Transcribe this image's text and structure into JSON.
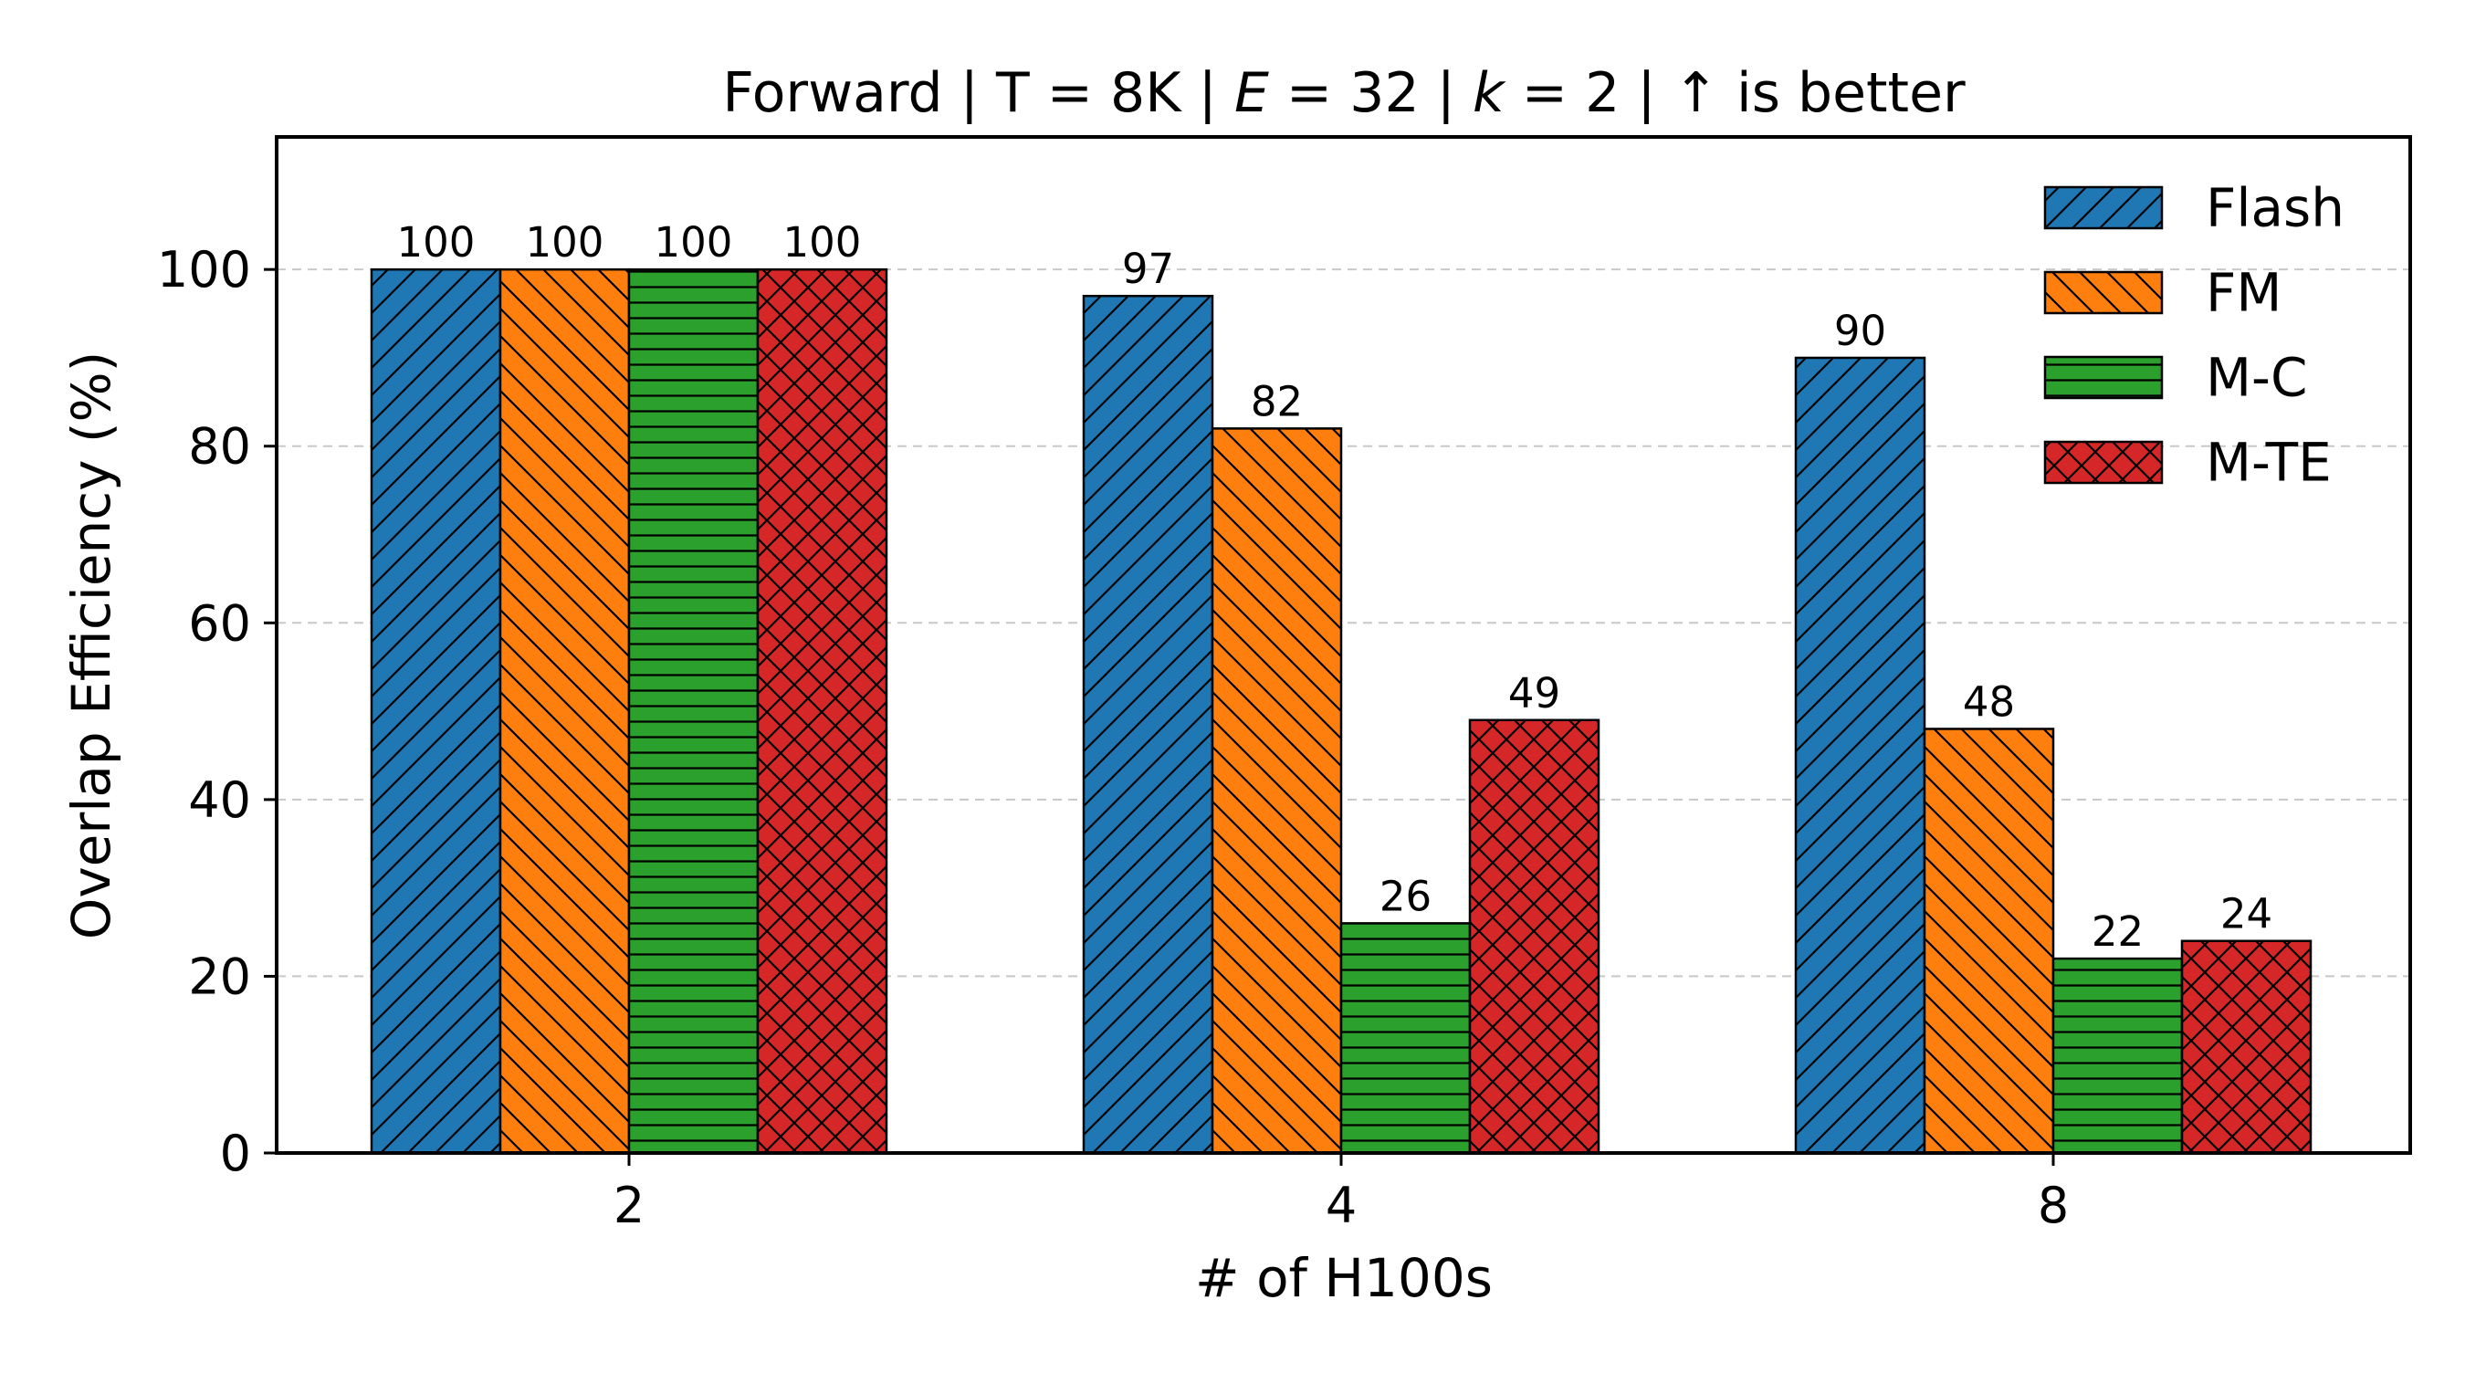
{
  "chart_data": {
    "type": "bar",
    "title": "Forward | T = 8K | E = 32 | k = 2 |  ↑  is better",
    "title_parts": {
      "prefix": "Forward | T = 8K | ",
      "e_symbol": "E",
      "e_value": " = 32 | ",
      "k_symbol": "k",
      "k_value": " = 2 |  ↑  is better"
    },
    "xlabel": "# of H100s",
    "ylabel": "Overlap Efficiency (%)",
    "categories": [
      "2",
      "4",
      "8"
    ],
    "ylim": [
      0,
      115
    ],
    "yticks": [
      0,
      20,
      40,
      60,
      80,
      100
    ],
    "grid": "y-dashed",
    "legend_position": "top-right",
    "series": [
      {
        "name": "Flash",
        "values": [
          100,
          97,
          90
        ],
        "color": "#1f77b4",
        "hatch": "forward-diagonal"
      },
      {
        "name": "FM",
        "values": [
          100,
          82,
          48
        ],
        "color": "#ff7f0e",
        "hatch": "back-diagonal"
      },
      {
        "name": "M-C",
        "values": [
          100,
          26,
          22
        ],
        "color": "#2ca02c",
        "hatch": "horizontal"
      },
      {
        "name": "M-TE",
        "values": [
          100,
          49,
          24
        ],
        "color": "#d62728",
        "hatch": "cross-hatch"
      }
    ]
  }
}
